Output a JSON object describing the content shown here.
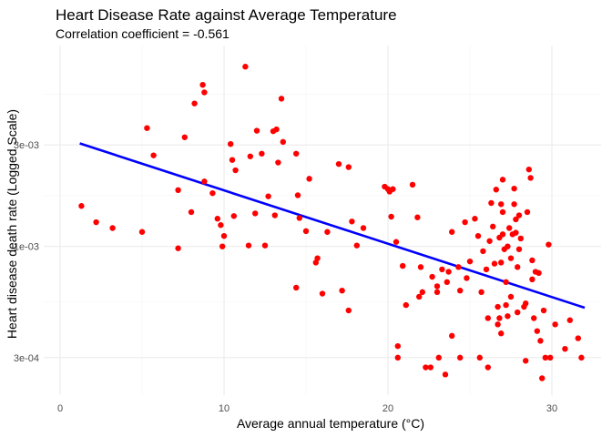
{
  "chart_data": {
    "type": "scatter",
    "title": "Heart Disease Rate against Average Temperature",
    "subtitle": "Correlation coefficient = -0.561",
    "xlabel": "Average annual temperature (°C)",
    "ylabel": "Heart disease death rate (Logged Scale)",
    "xlim": [
      -1,
      33
    ],
    "ylim": [
      0.0002,
      0.0088
    ],
    "y_scale": "log",
    "grid": true,
    "x_ticks": [
      0,
      10,
      20,
      30
    ],
    "x_tick_labels": [
      "0",
      "10",
      "20",
      "30"
    ],
    "y_ticks": [
      0.0003,
      0.001,
      0.003
    ],
    "y_tick_labels": [
      "3e-04",
      "1e-03",
      "3e-03"
    ],
    "colors": {
      "points": "#ff0000",
      "trend_line": "#0000ff",
      "grid": "#ebebeb",
      "background": "#ffffff"
    },
    "trend_line": {
      "x": [
        1.2,
        32.0
      ],
      "y": [
        0.00305,
        0.000515
      ]
    },
    "points": [
      [
        1.3,
        0.00155
      ],
      [
        2.2,
        0.0013
      ],
      [
        3.2,
        0.00122
      ],
      [
        5.0,
        0.00117
      ],
      [
        5.3,
        0.0036
      ],
      [
        5.7,
        0.00268
      ],
      [
        7.2,
        0.00098
      ],
      [
        7.2,
        0.00184
      ],
      [
        7.6,
        0.00326
      ],
      [
        8.0,
        0.00145
      ],
      [
        8.2,
        0.0047
      ],
      [
        8.7,
        0.00575
      ],
      [
        8.8,
        0.0053
      ],
      [
        8.8,
        0.00202
      ],
      [
        9.3,
        0.00178
      ],
      [
        9.6,
        0.00135
      ],
      [
        9.8,
        0.00126
      ],
      [
        9.9,
        0.001
      ],
      [
        10.0,
        0.00112
      ],
      [
        10.4,
        0.00303
      ],
      [
        10.5,
        0.00255
      ],
      [
        10.6,
        0.00139
      ],
      [
        10.7,
        0.00228
      ],
      [
        11.3,
        0.007
      ],
      [
        11.5,
        0.00101
      ],
      [
        11.6,
        0.00265
      ],
      [
        11.9,
        0.00143
      ],
      [
        12.0,
        0.0035
      ],
      [
        12.3,
        0.00273
      ],
      [
        12.5,
        0.00101
      ],
      [
        12.7,
        0.00172
      ],
      [
        13.0,
        0.00348
      ],
      [
        13.1,
        0.0014
      ],
      [
        13.2,
        0.00355
      ],
      [
        13.3,
        0.00248
      ],
      [
        13.5,
        0.00495
      ],
      [
        13.6,
        0.0031
      ],
      [
        14.4,
        0.00273
      ],
      [
        14.5,
        0.00174
      ],
      [
        14.6,
        0.00136
      ],
      [
        14.4,
        0.00064
      ],
      [
        15.0,
        0.00118
      ],
      [
        15.2,
        0.00208
      ],
      [
        15.6,
        0.00084
      ],
      [
        15.7,
        0.00088
      ],
      [
        16.0,
        0.0006
      ],
      [
        16.3,
        0.00117
      ],
      [
        17.0,
        0.00244
      ],
      [
        17.2,
        0.00062
      ],
      [
        17.6,
        0.00236
      ],
      [
        17.6,
        0.0005
      ],
      [
        17.8,
        0.00131
      ],
      [
        18.1,
        0.00101
      ],
      [
        18.5,
        0.00122
      ],
      [
        19.8,
        0.00191
      ],
      [
        20.0,
        0.00186
      ],
      [
        20.1,
        0.00181
      ],
      [
        20.2,
        0.00138
      ],
      [
        20.3,
        0.00186
      ],
      [
        20.5,
        0.00105
      ],
      [
        20.6,
        0.00034
      ],
      [
        20.6,
        0.0003
      ],
      [
        20.9,
        0.00081
      ],
      [
        21.1,
        0.00053
      ],
      [
        21.5,
        0.00195
      ],
      [
        21.8,
        0.00137
      ],
      [
        21.9,
        0.00058
      ],
      [
        22.0,
        0.0008
      ],
      [
        22.1,
        0.00061
      ],
      [
        22.3,
        0.00027
      ],
      [
        22.6,
        0.00027
      ],
      [
        22.7,
        0.00072
      ],
      [
        23.0,
        0.00061
      ],
      [
        23.0,
        0.00065
      ],
      [
        23.1,
        0.0003
      ],
      [
        23.3,
        0.00078
      ],
      [
        23.5,
        0.00025
      ],
      [
        23.6,
        0.00068
      ],
      [
        23.7,
        0.00076
      ],
      [
        23.9,
        0.00117
      ],
      [
        23.9,
        0.00038
      ],
      [
        24.3,
        0.0008
      ],
      [
        24.4,
        0.00062
      ],
      [
        24.4,
        0.0003
      ],
      [
        24.7,
        0.0013
      ],
      [
        24.8,
        0.00071
      ],
      [
        25.0,
        0.00085
      ],
      [
        25.3,
        0.00135
      ],
      [
        25.5,
        0.00112
      ],
      [
        25.6,
        0.0003
      ],
      [
        25.7,
        0.00061
      ],
      [
        25.8,
        0.00095
      ],
      [
        26.0,
        0.00078
      ],
      [
        26.1,
        0.00027
      ],
      [
        26.1,
        0.00046
      ],
      [
        26.2,
        0.00106
      ],
      [
        26.3,
        0.0016
      ],
      [
        26.4,
        0.00124
      ],
      [
        26.5,
        0.00083
      ],
      [
        26.6,
        0.00185
      ],
      [
        26.7,
        0.00052
      ],
      [
        26.7,
        0.00043
      ],
      [
        26.8,
        0.0011
      ],
      [
        26.8,
        0.00046
      ],
      [
        26.9,
        0.00158
      ],
      [
        26.9,
        0.00039
      ],
      [
        26.9,
        0.00084
      ],
      [
        27.0,
        0.00206
      ],
      [
        27.0,
        0.00114
      ],
      [
        27.0,
        0.00145
      ],
      [
        27.1,
        0.00097
      ],
      [
        27.2,
        0.00068
      ],
      [
        27.2,
        0.00053
      ],
      [
        27.3,
        0.001
      ],
      [
        27.3,
        0.00047
      ],
      [
        27.4,
        0.00122
      ],
      [
        27.5,
        0.00088
      ],
      [
        27.5,
        0.00058
      ],
      [
        27.6,
        0.00114
      ],
      [
        27.7,
        0.00158
      ],
      [
        27.7,
        0.00187
      ],
      [
        27.8,
        0.00134
      ],
      [
        27.8,
        0.00116
      ],
      [
        27.9,
        0.0008
      ],
      [
        27.9,
        0.00049
      ],
      [
        28.0,
        0.00097
      ],
      [
        28.0,
        0.0014
      ],
      [
        28.1,
        0.00109
      ],
      [
        28.3,
        0.00052
      ],
      [
        28.4,
        0.00054
      ],
      [
        28.4,
        0.00029
      ],
      [
        28.5,
        0.00145
      ],
      [
        28.6,
        0.0023
      ],
      [
        28.7,
        0.0021
      ],
      [
        28.8,
        0.0007
      ],
      [
        28.8,
        0.00086
      ],
      [
        28.9,
        0.00046
      ],
      [
        29.0,
        0.00076
      ],
      [
        29.1,
        0.0004
      ],
      [
        29.2,
        0.00075
      ],
      [
        29.3,
        0.00036
      ],
      [
        29.4,
        0.00024
      ],
      [
        29.5,
        0.0005
      ],
      [
        29.6,
        0.0003
      ],
      [
        29.8,
        0.00102
      ],
      [
        29.9,
        0.0003
      ],
      [
        30.2,
        0.00043
      ],
      [
        30.8,
        0.00033
      ],
      [
        31.1,
        0.00045
      ],
      [
        31.6,
        0.00037
      ],
      [
        31.8,
        0.0003
      ]
    ]
  }
}
